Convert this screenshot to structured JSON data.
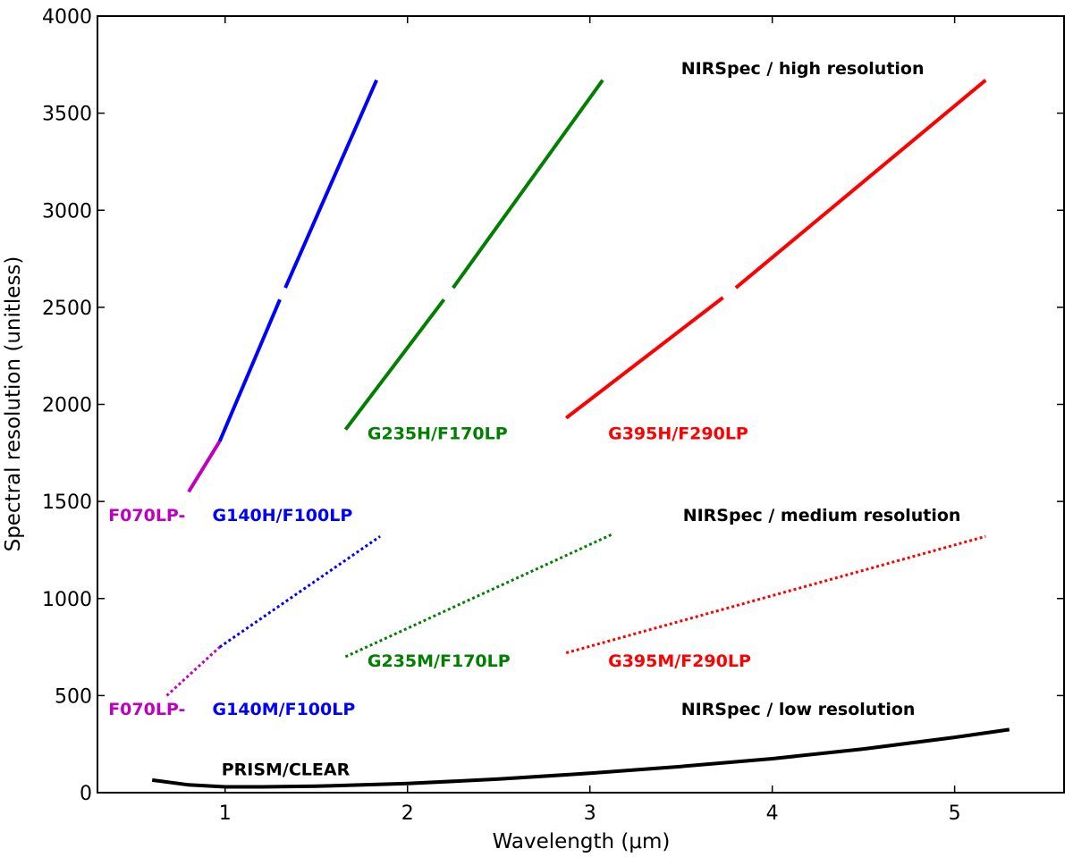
{
  "chart_data": {
    "type": "line",
    "title": "",
    "xlabel": "Wavelength (μm)",
    "ylabel": "Spectral resolution (unitless)",
    "xlim": [
      0.3,
      5.6
    ],
    "ylim": [
      0,
      4000
    ],
    "xticks": [
      1,
      2,
      3,
      4,
      5
    ],
    "yticks": [
      0,
      500,
      1000,
      1500,
      2000,
      2500,
      3000,
      3500,
      4000
    ],
    "grid": false,
    "legend": "none",
    "series": [
      {
        "key": "g140h-f070lp",
        "color": "#bf00bf",
        "style": "solid",
        "x": [
          0.8,
          0.97
        ],
        "y": [
          1550,
          1810
        ]
      },
      {
        "key": "g140h-f100lp",
        "color": "#0000ff",
        "style": "solid",
        "gaps": [
          [
            1.3,
            1.33
          ]
        ],
        "x": [
          0.97,
          1.3,
          1.33,
          1.83
        ],
        "y": [
          1810,
          2540,
          2600,
          3670
        ]
      },
      {
        "key": "g235h-f170lp",
        "color": "#007f00",
        "style": "solid",
        "gaps": [
          [
            2.2,
            2.25
          ]
        ],
        "x": [
          1.66,
          2.2,
          2.25,
          3.07
        ],
        "y": [
          1870,
          2540,
          2600,
          3670
        ]
      },
      {
        "key": "g395h-f290lp",
        "color": "#ff0000",
        "style": "solid",
        "gaps": [
          [
            3.73,
            3.8
          ]
        ],
        "x": [
          2.87,
          3.73,
          3.8,
          5.17
        ],
        "y": [
          1930,
          2550,
          2600,
          3670
        ]
      },
      {
        "key": "g140m-f070lp",
        "color": "#bf00bf",
        "style": "dotted",
        "x": [
          0.68,
          0.97
        ],
        "y": [
          500,
          750
        ]
      },
      {
        "key": "g140m-f100lp",
        "color": "#0000ff",
        "style": "dotted",
        "x": [
          0.97,
          1.85
        ],
        "y": [
          750,
          1320
        ]
      },
      {
        "key": "g235m-f170lp",
        "color": "#007f00",
        "style": "dotted",
        "x": [
          1.66,
          3.12
        ],
        "y": [
          700,
          1330
        ]
      },
      {
        "key": "g395m-f290lp",
        "color": "#ff0000",
        "style": "dotted",
        "x": [
          2.87,
          5.17
        ],
        "y": [
          720,
          1320
        ]
      },
      {
        "key": "prism-clear",
        "color": "#000000",
        "style": "solid-thick",
        "x": [
          0.6,
          0.8,
          1.0,
          1.2,
          1.5,
          2.0,
          2.5,
          3.0,
          3.5,
          4.0,
          4.5,
          5.0,
          5.3
        ],
        "y": [
          65,
          40,
          30,
          30,
          33,
          47,
          70,
          100,
          135,
          175,
          225,
          285,
          325
        ]
      }
    ],
    "annotations": [
      {
        "text": "NIRSpec / high resolution",
        "x": 3.5,
        "y": 3700,
        "color": "#000000"
      },
      {
        "text": "G235H/F170LP",
        "x": 1.78,
        "y": 1820,
        "color": "#007f00"
      },
      {
        "text": "G395H/F290LP",
        "x": 3.1,
        "y": 1820,
        "color": "#ff0000"
      },
      {
        "text": "F070LP-",
        "x": 0.36,
        "y": 1400,
        "color": "#bf00bf"
      },
      {
        "text": "G140H/F100LP",
        "x": 0.93,
        "y": 1400,
        "color": "#0000ff"
      },
      {
        "text": "NIRSpec / medium resolution",
        "x": 3.51,
        "y": 1400,
        "color": "#000000"
      },
      {
        "text": "G235M/F170LP",
        "x": 1.78,
        "y": 650,
        "color": "#007f00"
      },
      {
        "text": "G395M/F290LP",
        "x": 3.1,
        "y": 650,
        "color": "#ff0000"
      },
      {
        "text": "F070LP-",
        "x": 0.36,
        "y": 400,
        "color": "#bf00bf"
      },
      {
        "text": "G140M/F100LP",
        "x": 0.93,
        "y": 400,
        "color": "#0000ff"
      },
      {
        "text": "NIRSpec / low resolution",
        "x": 3.5,
        "y": 400,
        "color": "#000000"
      },
      {
        "text": "PRISM/CLEAR",
        "x": 0.98,
        "y": 90,
        "color": "#000000"
      }
    ]
  }
}
